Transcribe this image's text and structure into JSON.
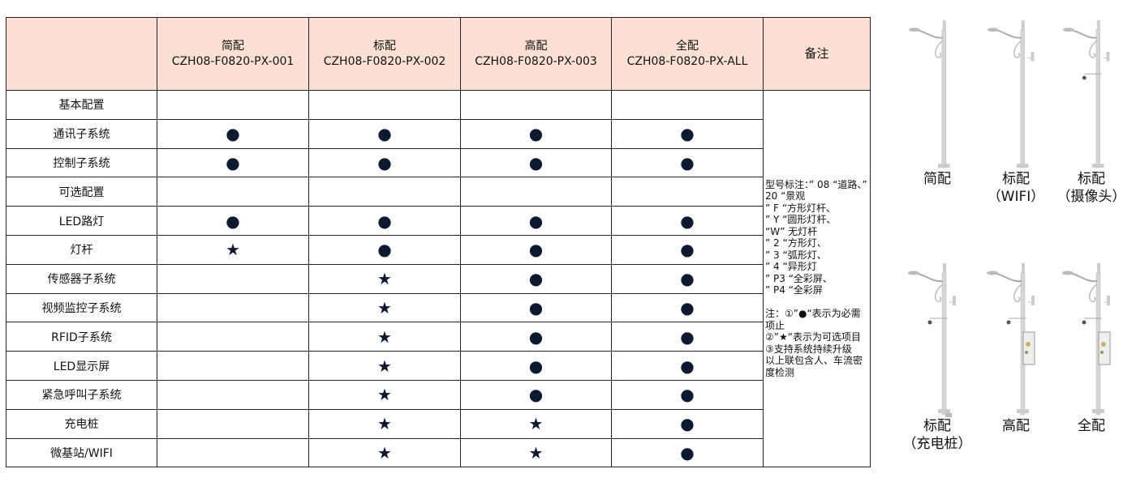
{
  "columns": [
    {
      "name": "简配",
      "code": "CZH08-F0820-PX-001"
    },
    {
      "name": "标配",
      "code": "CZH08-F0820-PX-002"
    },
    {
      "name": "高配",
      "code": "CZH08-F0820-PX-003"
    },
    {
      "name": "全配",
      "code": "CZH08-F0820-PX-ALL"
    }
  ],
  "notes_header": "备注",
  "rows": [
    {
      "label": "基本配置",
      "marks": [
        "",
        "",
        "",
        ""
      ]
    },
    {
      "label": "通讯子系统",
      "marks": [
        "●",
        "●",
        "●",
        "●"
      ]
    },
    {
      "label": "控制子系统",
      "marks": [
        "●",
        "●",
        "●",
        "●"
      ]
    },
    {
      "label": "可选配置",
      "marks": [
        "",
        "",
        "",
        ""
      ]
    },
    {
      "label": "LED路灯",
      "marks": [
        "●",
        "●",
        "●",
        "●"
      ]
    },
    {
      "label": "灯杆",
      "marks": [
        "★",
        "●",
        "●",
        "●"
      ]
    },
    {
      "label": "传感器子系统",
      "marks": [
        "",
        "★",
        "●",
        "●"
      ]
    },
    {
      "label": "视频监控子系统",
      "marks": [
        "",
        "★",
        "●",
        "●"
      ]
    },
    {
      "label": "RFID子系统",
      "marks": [
        "",
        "★",
        "●",
        "●"
      ]
    },
    {
      "label": "LED显示屏",
      "marks": [
        "",
        "★",
        "●",
        "●"
      ]
    },
    {
      "label": "紧急呼叫子系统",
      "marks": [
        "",
        "★",
        "●",
        "●"
      ]
    },
    {
      "label": "充电桩",
      "marks": [
        "",
        "★",
        "★",
        "●"
      ]
    },
    {
      "label": "微基站/WIFI",
      "marks": [
        "",
        "★",
        "★",
        "●"
      ]
    }
  ],
  "notes": "型号标注：” 08 “道路、” 20 “景观\n” F “方形灯杆、\n” Y “圆形灯杆、\n“W” 无灯杆\n” 2 “方形灯、\n” 3 “弧形灯、\n” 4 “异形灯\n” P3 “全彩屏、\n” P4 “全彩屏\n\n注：①”●“表示为必需项止\n②”★“表示为可选项目\n③支持系统持续升级\n以上联包含人、车流密度检测",
  "poles": [
    {
      "label": "简配",
      "sub": ""
    },
    {
      "label": "标配",
      "sub": "（WIFI）"
    },
    {
      "label": "标配",
      "sub": "（摄像头）"
    },
    {
      "label": "标配",
      "sub": "（充电桩）"
    },
    {
      "label": "高配",
      "sub": ""
    },
    {
      "label": "全配",
      "sub": ""
    }
  ],
  "colors": {
    "header_bg": "#fbe0d3",
    "mark": "#0b1a30"
  }
}
